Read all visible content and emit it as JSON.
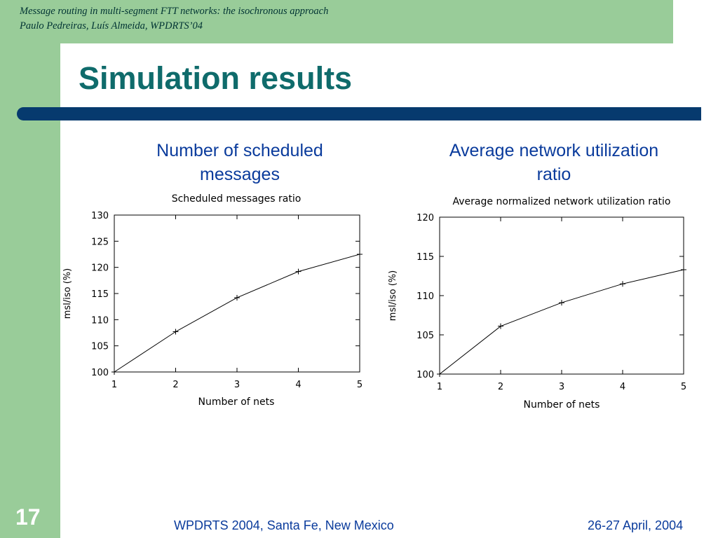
{
  "header": {
    "line1": "Message routing in multi-segment FTT networks: the isochronous approach",
    "line2": "Paulo Pedreiras, Luís Almeida, WPDRTS’04"
  },
  "slide": {
    "title": "Simulation results",
    "page_number": "17"
  },
  "footer": {
    "left": "WPDRTS 2004, Santa Fe, New Mexico",
    "right": "26-27 April, 2004"
  },
  "headings": {
    "left_line1": "Number of scheduled",
    "left_line2": "messages",
    "right_line1": "Average network utilization",
    "right_line2": "ratio"
  },
  "colors": {
    "green": "#99cc99",
    "title": "#0f6b6b",
    "rule": "#063a6e",
    "heading": "#0a3b9c"
  },
  "chart_data": [
    {
      "type": "line",
      "title": "Scheduled messages ratio",
      "xlabel": "Number of nets",
      "ylabel": "msl/iso (%)",
      "x": [
        1,
        2,
        3,
        4,
        5
      ],
      "xticks": [
        "1",
        "2",
        "3",
        "4",
        "5"
      ],
      "yticks": [
        "100",
        "105",
        "110",
        "115",
        "120",
        "125",
        "130"
      ],
      "xlim": [
        1,
        5
      ],
      "ylim": [
        100,
        130
      ],
      "series": [
        {
          "values": [
            100,
            107.7,
            114.2,
            119.2,
            122.5
          ]
        }
      ],
      "grid": false
    },
    {
      "type": "line",
      "title": "Average normalized network utilization ratio",
      "xlabel": "Number of nets",
      "ylabel": "msl/iso (%)",
      "x": [
        1,
        2,
        3,
        4,
        5
      ],
      "xticks": [
        "1",
        "2",
        "3",
        "4",
        "5"
      ],
      "yticks": [
        "100",
        "105",
        "110",
        "115",
        "120"
      ],
      "xlim": [
        1,
        5
      ],
      "ylim": [
        100,
        120
      ],
      "series": [
        {
          "values": [
            100,
            106.1,
            109.1,
            111.5,
            113.3
          ]
        }
      ],
      "grid": false
    }
  ]
}
